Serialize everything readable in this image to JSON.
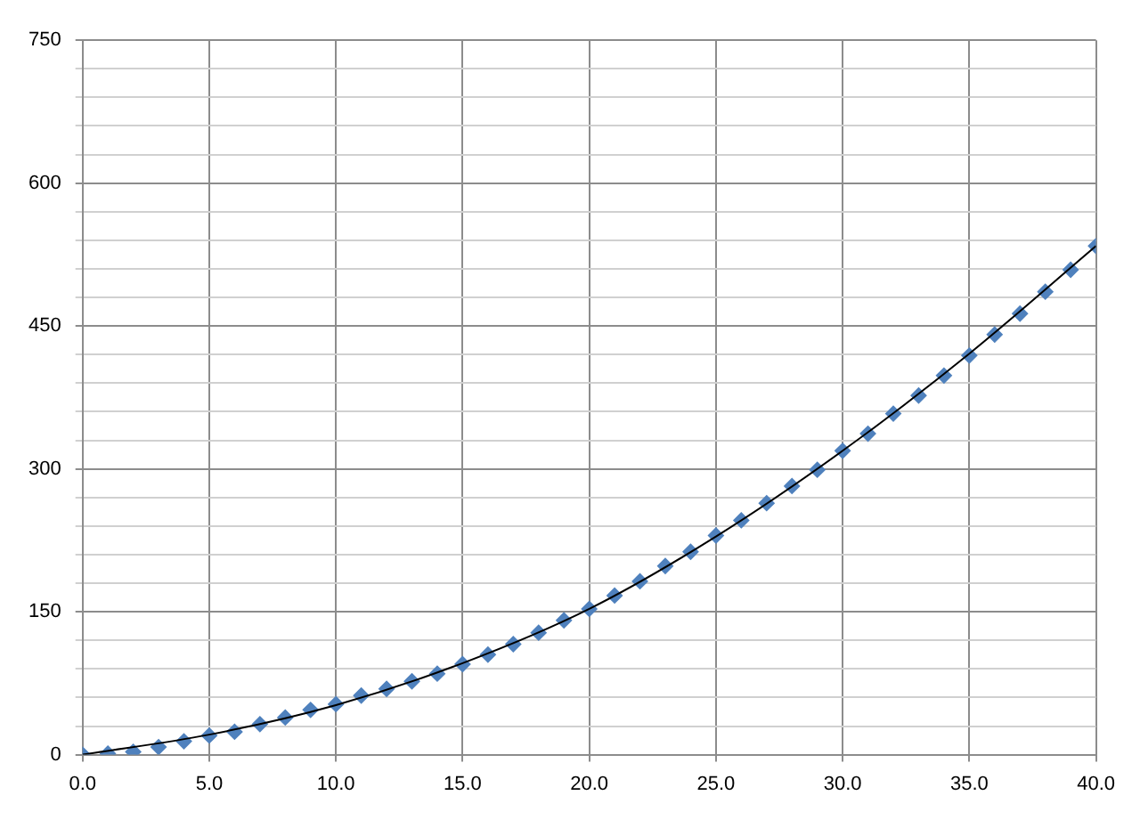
{
  "chart_data": {
    "type": "scatter",
    "xlim": [
      0,
      40
    ],
    "ylim": [
      0,
      750
    ],
    "xticks": [
      {
        "value": 0,
        "label": "0.0"
      },
      {
        "value": 5,
        "label": "5.0"
      },
      {
        "value": 10,
        "label": "10.0"
      },
      {
        "value": 15,
        "label": "15.0"
      },
      {
        "value": 20,
        "label": "20.0"
      },
      {
        "value": 25,
        "label": "25.0"
      },
      {
        "value": 30,
        "label": "30.0"
      },
      {
        "value": 35,
        "label": "35.0"
      },
      {
        "value": 40,
        "label": "40.0"
      }
    ],
    "yticks": [
      0,
      {
        "value": 30,
        "label": null
      },
      {
        "value": 60,
        "label": null
      },
      {
        "value": 90,
        "label": null
      },
      {
        "value": 120,
        "label": null
      },
      150,
      {
        "value": 180,
        "label": null
      },
      {
        "value": 210,
        "label": null
      },
      {
        "value": 240,
        "label": null
      },
      {
        "value": 270,
        "label": null
      },
      300,
      {
        "value": 330,
        "label": null
      },
      {
        "value": 360,
        "label": null
      },
      {
        "value": 390,
        "label": null
      },
      {
        "value": 420,
        "label": null
      },
      450,
      {
        "value": 480,
        "label": null
      },
      {
        "value": 510,
        "label": null
      },
      {
        "value": 540,
        "label": null
      },
      {
        "value": 570,
        "label": null
      },
      600,
      {
        "value": 630,
        "label": null
      },
      {
        "value": 660,
        "label": null
      },
      {
        "value": 690,
        "label": null
      },
      {
        "value": 720,
        "label": null
      },
      750
    ],
    "grid": true,
    "legend": false,
    "series": [
      {
        "color": "#4f81bd",
        "marker": "diamond",
        "x": [
          0,
          1,
          2,
          3,
          4,
          5,
          6,
          7,
          8,
          9,
          10,
          11,
          12,
          13,
          14,
          15,
          16,
          17,
          18,
          19,
          20,
          21,
          22,
          23,
          24,
          25,
          26,
          27,
          28,
          29,
          30,
          31,
          32,
          33,
          34,
          35,
          36,
          37,
          38,
          39,
          40
        ],
        "values": [
          0,
          1,
          3,
          8,
          14,
          20,
          24,
          32,
          39,
          47,
          53,
          62,
          69,
          77,
          85,
          95,
          105,
          116,
          128,
          141,
          153,
          167,
          182,
          198,
          213,
          230,
          246,
          264,
          282,
          299,
          319,
          337,
          358,
          377,
          398,
          419,
          441,
          463,
          486,
          509,
          534
        ]
      },
      {
        "type": "line",
        "color": "#000000",
        "marker": "none",
        "line_style": "solid",
        "x": [
          0,
          5,
          10,
          15,
          20,
          25,
          30,
          35,
          40
        ],
        "values": [
          0,
          21,
          52,
          96,
          153,
          229,
          319,
          421,
          534
        ]
      }
    ]
  }
}
